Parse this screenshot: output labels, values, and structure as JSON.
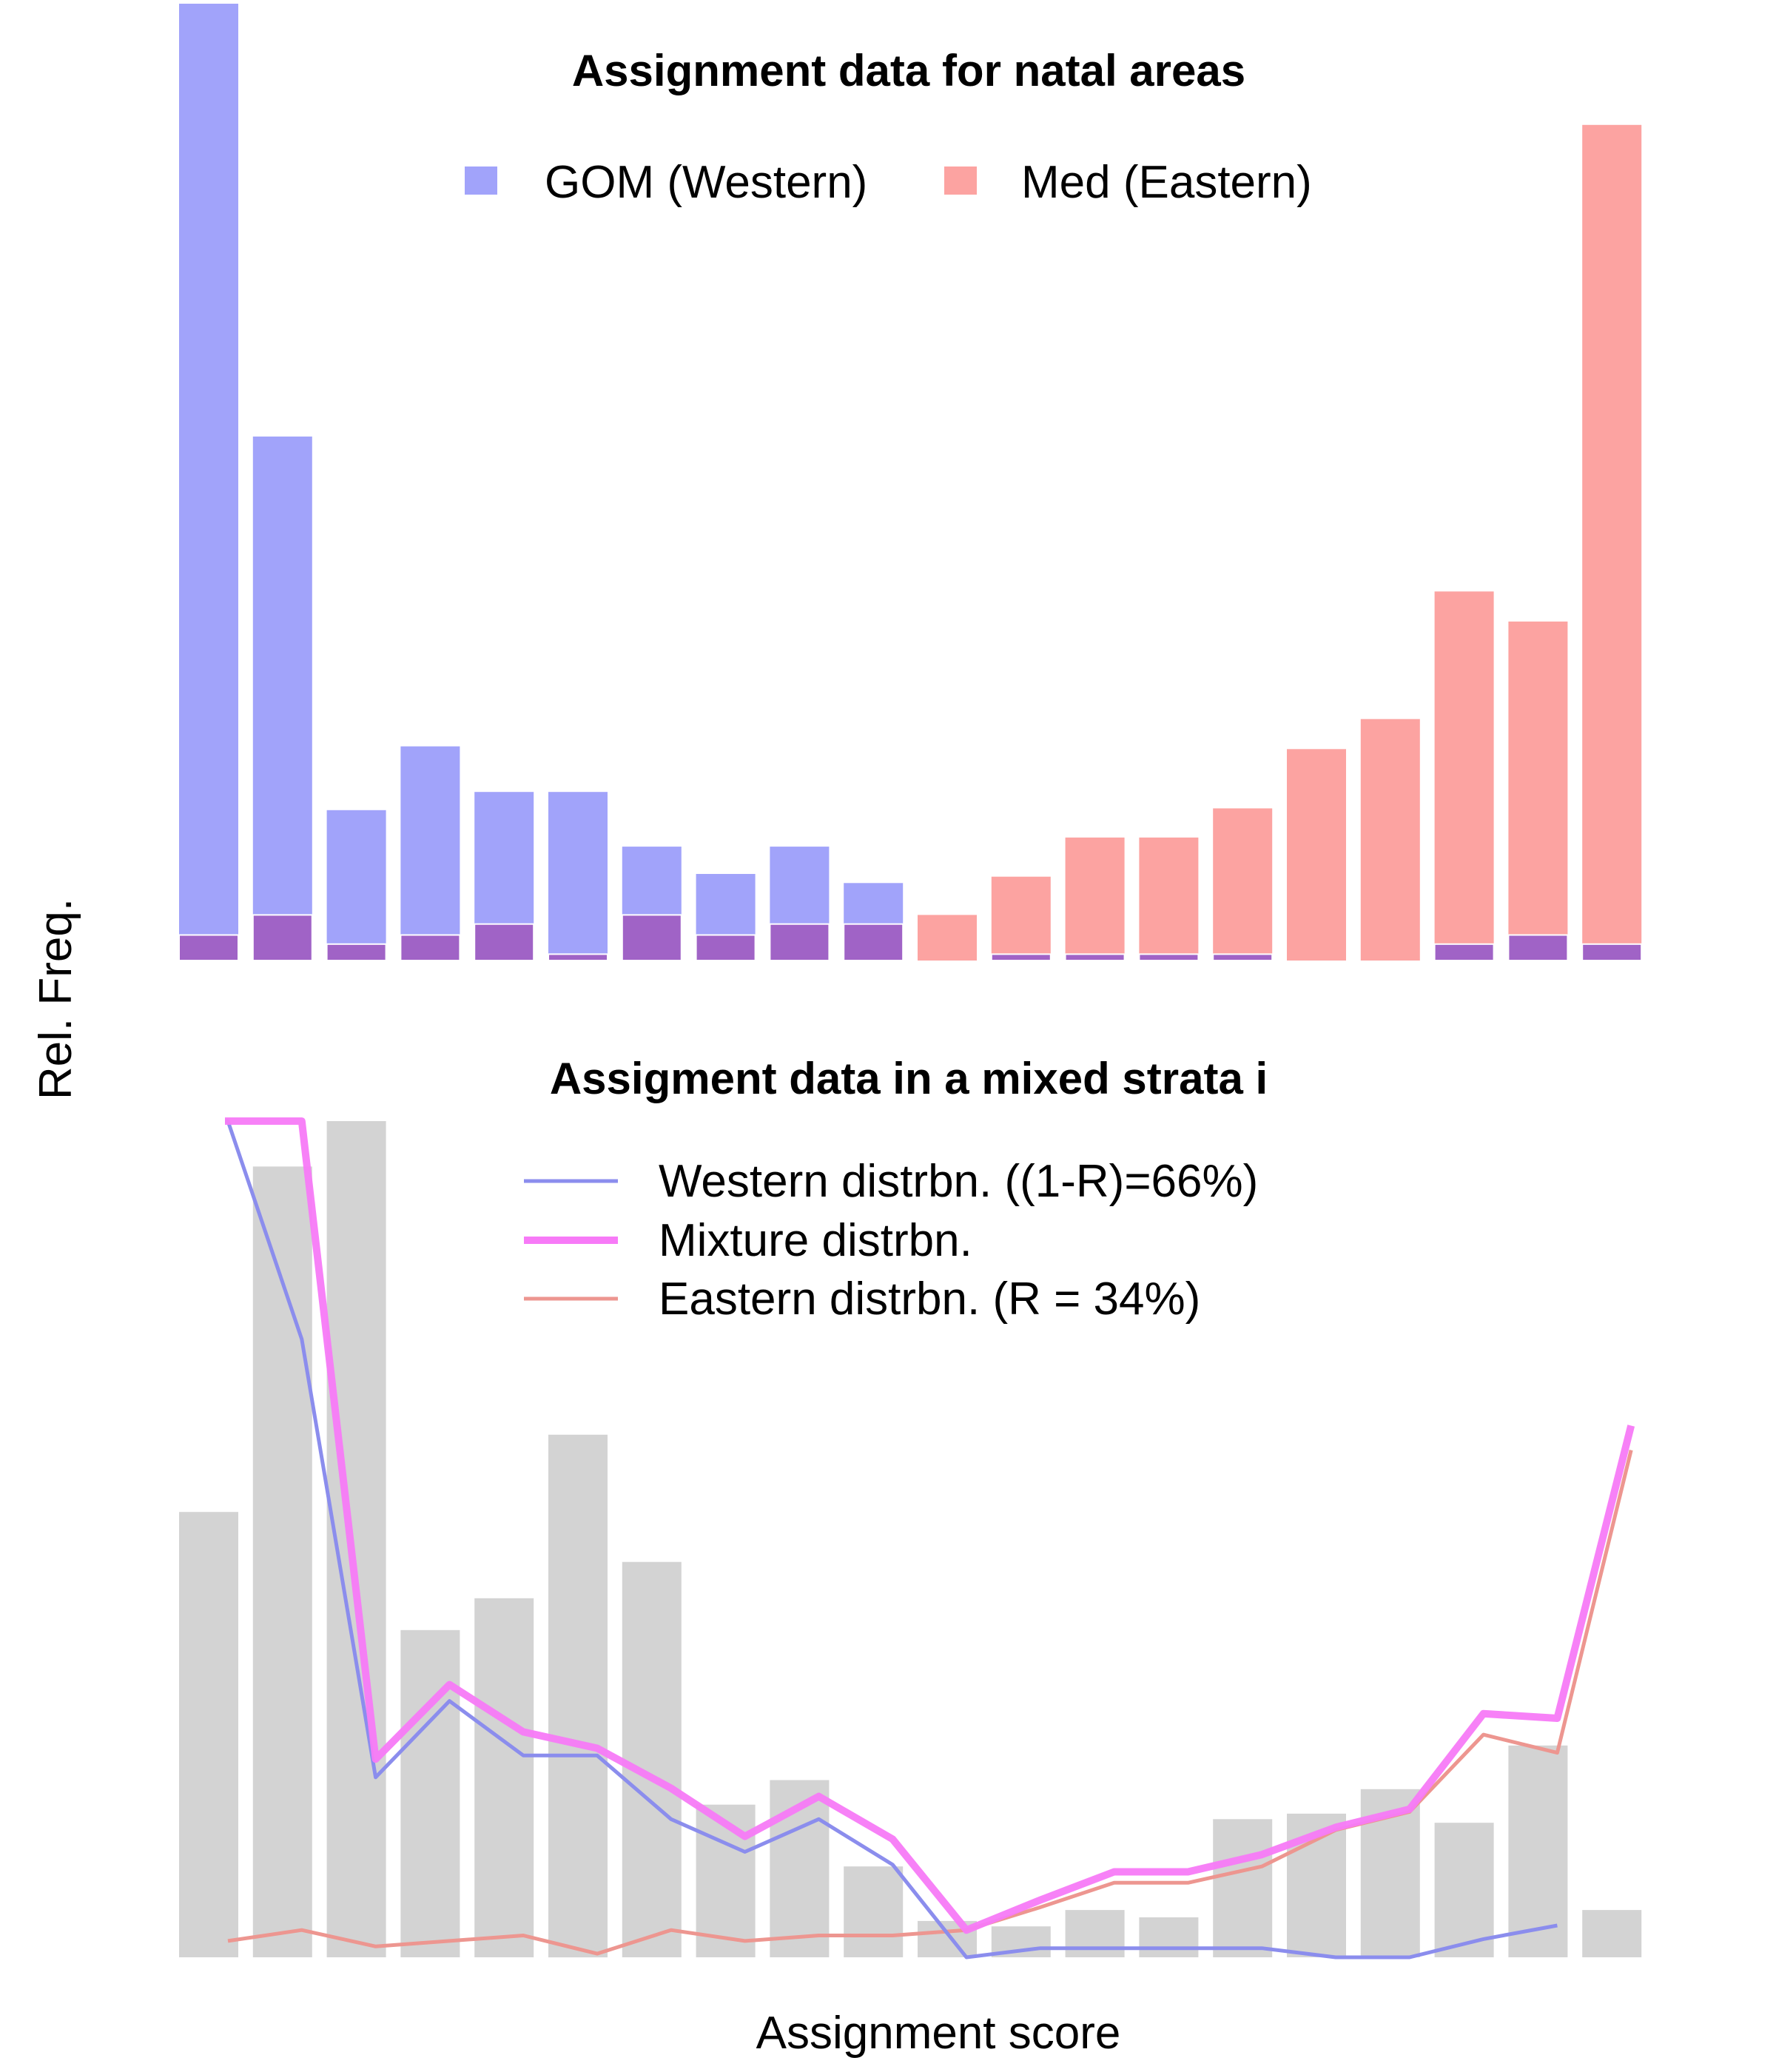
{
  "ylabel": "Rel. Freq.",
  "xlabel": "Assignment score",
  "colors": {
    "western": "#a1a3fa",
    "eastern": "#fca3a1",
    "overlap": "#a063c6",
    "histogram": "#d3d3d3",
    "western_line": "#8b8ded",
    "mixture_line": "#f77af7",
    "eastern_line": "#ed9690"
  },
  "chart_data": [
    {
      "type": "bar",
      "title": "Assignment data for natal areas",
      "bins": 20,
      "legend": {
        "placement": "top-center",
        "items": [
          "GOM (Western)",
          "Med (Eastern)"
        ]
      },
      "ylim": [
        0,
        1.05
      ],
      "series": [
        {
          "name": "GOM (Western)",
          "values": [
            1.05,
            0.575,
            0.165,
            0.235,
            0.185,
            0.185,
            0.125,
            0.095,
            0.125,
            0.085,
            0,
            0,
            0,
            0,
            0,
            0,
            0,
            0,
            0,
            0
          ]
        },
        {
          "name": "Med (Eastern)",
          "values": [
            0.028,
            0.05,
            0.018,
            0.028,
            0.04,
            0.007,
            0.05,
            0.028,
            0.04,
            0.04,
            0.05,
            0.092,
            0.135,
            0.135,
            0.167,
            0.232,
            0.265,
            0.405,
            0.372,
            0.917
          ]
        }
      ],
      "overlap_note": "Eastern bars drawn in front of taller Western bars, and Western bars in front of taller Eastern bars",
      "western_under_eastern": [
        0,
        0,
        0,
        0,
        0,
        0,
        0,
        0,
        0,
        0,
        0,
        0.007,
        0.007,
        0.007,
        0.007,
        0,
        0,
        0.018,
        0.028,
        0.018
      ]
    },
    {
      "type": "bar",
      "title": "Assigment data in a mixed strata i",
      "bins": 20,
      "ylim": [
        0,
        0.92
      ],
      "histogram": [
        0.49,
        0.87,
        0.92,
        0.36,
        0.395,
        0.575,
        0.435,
        0.168,
        0.195,
        0.1,
        0.04,
        0.034,
        0.052,
        0.044,
        0.152,
        0.158,
        0.185,
        0.148,
        0.233,
        0.052
      ],
      "legend": {
        "placement": "top-center",
        "items": [
          "Western distrbn. ((1-R)=66%)",
          "Mixture distrbn.",
          "Eastern distrbn. (R = 34%)"
        ]
      },
      "lines": [
        {
          "name": "Western distrbn. ((1-R)=66%)",
          "x": [
            0.5,
            1,
            1.5,
            2,
            2.5,
            3,
            3.5,
            4,
            4.5,
            5,
            5.5,
            6,
            6.5,
            7,
            7.5,
            8,
            8.5,
            9,
            9.5,
            10,
            10.5,
            11,
            11.5,
            12,
            12.5,
            13,
            13.5,
            14,
            14.5,
            15,
            15.5,
            16,
            16.5,
            17,
            17.5,
            18,
            18.5,
            19,
            19.5
          ],
          "values": [
            null,
            0.92,
            null,
            0.68,
            null,
            0.198,
            null,
            0.282,
            null,
            0.222,
            null,
            0.222,
            null,
            0.152,
            null,
            0.116,
            null,
            0.152,
            null,
            0.102,
            null,
            0.0,
            null,
            0.01,
            null,
            0.01,
            null,
            0.01,
            null,
            0.01,
            null,
            0.0,
            null,
            0.0,
            null,
            0.02,
            null,
            0.035,
            null
          ]
        },
        {
          "name": "Mixture distrbn.",
          "values_by_bin": [
            0.92,
            0.92,
            0.218,
            0.3,
            0.248,
            0.23,
            0.186,
            0.133,
            0.177,
            0.13,
            0.03,
            0.063,
            0.094,
            0.094,
            0.113,
            0.143,
            0.163,
            0.268,
            0.263,
            0.585
          ]
        },
        {
          "name": "Eastern distrbn. (R = 34%)",
          "values_by_bin": [
            0.018,
            0.03,
            0.012,
            0.018,
            0.024,
            0.004,
            0.03,
            0.018,
            0.024,
            0.024,
            0.03,
            0.055,
            0.082,
            0.082,
            0.1,
            0.14,
            0.16,
            0.245,
            0.225,
            0.558
          ]
        }
      ]
    }
  ]
}
